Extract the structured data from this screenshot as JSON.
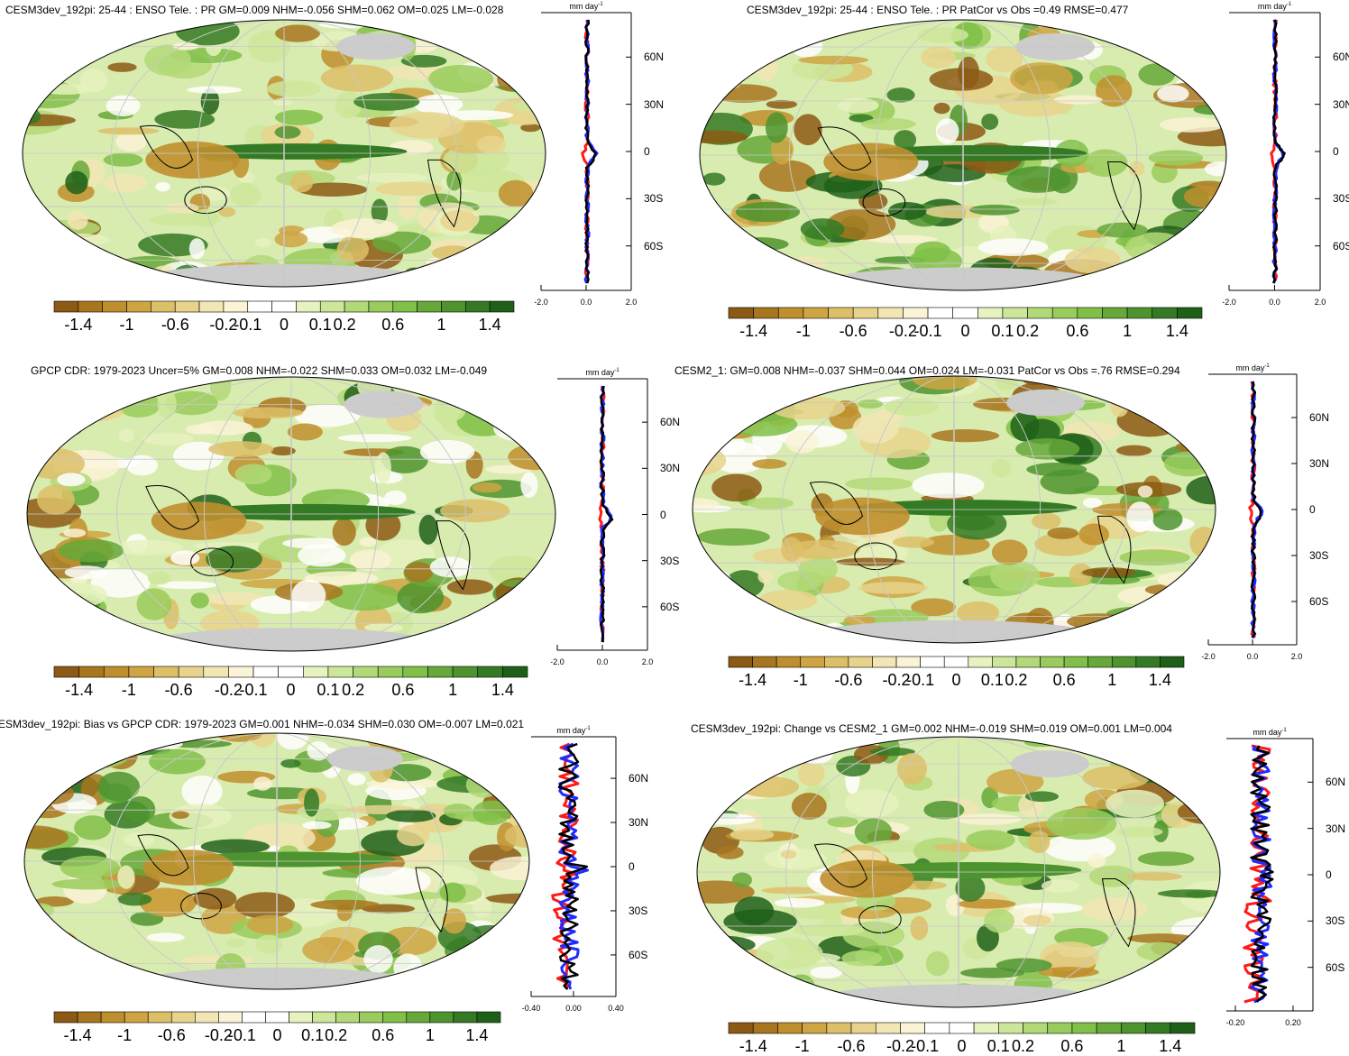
{
  "colors": {
    "land": "#cccccc",
    "grid": "#c8c8c8",
    "obs_line": "#ff1a1a",
    "model_line": "#1f2bff",
    "diff_line": "#000000",
    "scale": [
      "#8c5a14",
      "#a8761f",
      "#bf8f2d",
      "#cfa443",
      "#ddbf68",
      "#e8d38c",
      "#f2e6b4",
      "#faf3d6",
      "#ffffff",
      "#ffffff",
      "#e6f2bf",
      "#cde79a",
      "#b2d977",
      "#99cc5c",
      "#80bf48",
      "#66a83a",
      "#4d942f",
      "#347a24",
      "#1f6019"
    ]
  },
  "colorbar_labels": [
    "-1.4",
    "-1",
    "-0.6",
    "-0.2",
    "-0.1",
    "0",
    "0.1",
    "0.2",
    "0.6",
    "1",
    "1.4"
  ],
  "unit_label": "mm day",
  "unit_exp": "-1",
  "lat_labels": [
    "60N",
    "30N",
    "0",
    "30S",
    "60S"
  ],
  "panels": [
    {
      "id": "p1",
      "title": "CESM3dev_192pi: 25-44 : ENSO Tele. : PR GM=0.009 NHM=-0.056 SHM=0.062 OM=0.025 LM=-0.028",
      "xticks": [
        "-2.0",
        "0.0",
        "2.0"
      ],
      "profile_lines": [
        "obs",
        "model",
        "diff"
      ]
    },
    {
      "id": "p2",
      "title": "CESM3dev_192pi: 25-44 : ENSO Tele. : PR PatCor vs Obs =0.49 RMSE=0.477",
      "xticks": [
        "-2.0",
        "0.0",
        "2.0"
      ],
      "profile_lines": [
        "obs",
        "model",
        "diff"
      ]
    },
    {
      "id": "p3",
      "title": "GPCP CDR: 1979-2023 Uncer=5% GM=0.008 NHM=-0.022 SHM=0.033 OM=0.032 LM=-0.049",
      "xticks": [
        "-2.0",
        "0.0",
        "2.0"
      ],
      "profile_lines": [
        "obs",
        "model",
        "diff"
      ]
    },
    {
      "id": "p4",
      "title": "CESM2_1: GM=0.008 NHM=-0.037 SHM=0.044 OM=0.024 LM=-0.031 PatCor vs Obs =.76 RMSE=0.294",
      "xticks": [
        "-2.0",
        "0.0",
        "2.0"
      ],
      "profile_lines": [
        "obs",
        "model",
        "diff"
      ]
    },
    {
      "id": "p5",
      "title": "ESM3dev_192pi: Bias vs GPCP CDR: 1979-2023 GM=0.001 NHM=-0.034 SHM=0.030 OM=-0.007 LM=0.021",
      "xticks": [
        "-0.40",
        "0.00",
        "0.40"
      ],
      "profile_lines": [
        "obs",
        "model",
        "diff"
      ]
    },
    {
      "id": "p6",
      "title": "CESM3dev_192pi: Change vs CESM2_1 GM=0.002 NHM=-0.019 SHM=0.019 OM=0.001 LM=0.004",
      "xticks": [
        "-0.20",
        "0.20"
      ],
      "profile_lines": [
        "obs",
        "model",
        "diff"
      ]
    }
  ]
}
